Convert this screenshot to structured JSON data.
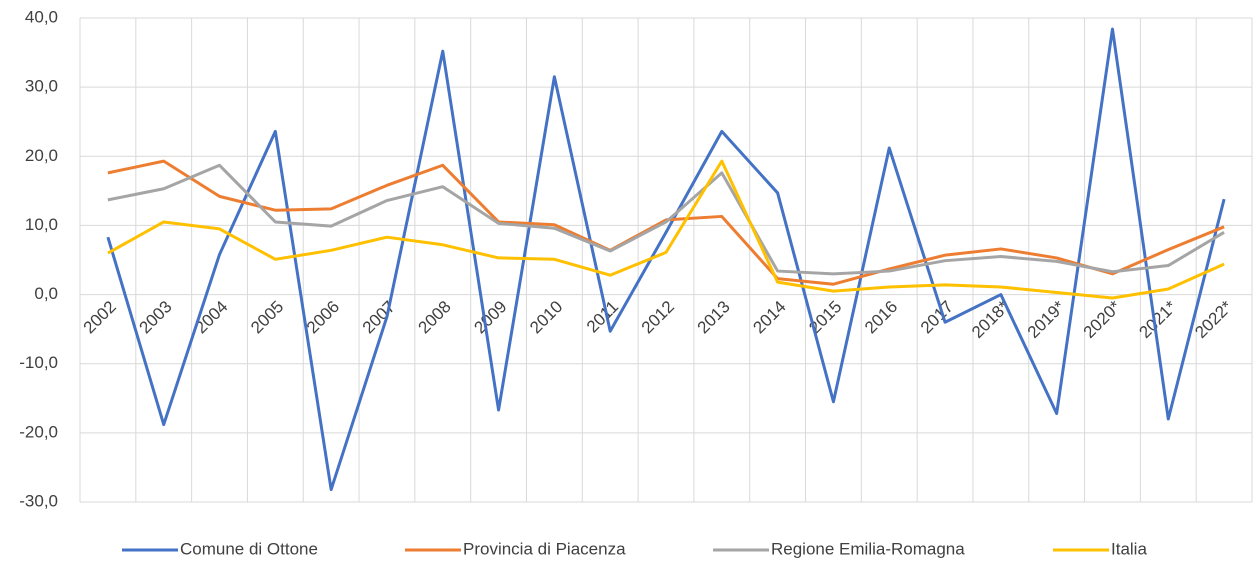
{
  "chart_data": {
    "type": "line",
    "categories": [
      "2002",
      "2003",
      "2004",
      "2005",
      "2006",
      "2007",
      "2008",
      "2009",
      "2010",
      "2011",
      "2012",
      "2013",
      "2014",
      "2015",
      "2016",
      "2017",
      "2018*",
      "2019*",
      "2020*",
      "2021*",
      "2022*"
    ],
    "series": [
      {
        "name": "Comune di Ottone",
        "color": "#4472c4",
        "values": [
          8.3,
          -18.8,
          5.8,
          23.6,
          -28.2,
          -3.2,
          35.2,
          -16.7,
          31.5,
          -5.3,
          9.0,
          23.6,
          14.7,
          -15.5,
          21.2,
          -4.0,
          0.0,
          -17.2,
          38.4,
          -18.0,
          13.8
        ]
      },
      {
        "name": "Provincia di Piacenza",
        "color": "#ed7d31",
        "values": [
          17.6,
          19.3,
          14.2,
          12.2,
          12.4,
          15.8,
          18.7,
          10.5,
          10.1,
          6.4,
          10.8,
          11.3,
          2.3,
          1.5,
          3.7,
          5.7,
          6.6,
          5.3,
          3.0,
          6.5,
          9.8
        ]
      },
      {
        "name": "Regione Emilia-Romagna",
        "color": "#a5a5a5",
        "values": [
          13.7,
          15.3,
          18.7,
          10.5,
          9.9,
          13.6,
          15.6,
          10.3,
          9.6,
          6.3,
          10.5,
          17.6,
          3.4,
          3.0,
          3.4,
          4.9,
          5.5,
          4.8,
          3.3,
          4.2,
          9.0
        ]
      },
      {
        "name": "Italia",
        "color": "#ffc000",
        "values": [
          6.0,
          10.5,
          9.5,
          5.1,
          6.4,
          8.3,
          7.2,
          5.3,
          5.1,
          2.8,
          6.1,
          19.3,
          1.8,
          0.5,
          1.1,
          1.4,
          1.1,
          0.3,
          -0.5,
          0.8,
          4.4
        ]
      }
    ],
    "ylim": [
      -30,
      40
    ],
    "yticks": [
      {
        "value": -30,
        "label": "-30,0"
      },
      {
        "value": -20,
        "label": "-20,0"
      },
      {
        "value": -10,
        "label": "-10,0"
      },
      {
        "value": 0,
        "label": "0,0"
      },
      {
        "value": 10,
        "label": "10,0"
      },
      {
        "value": 20,
        "label": "20,0"
      },
      {
        "value": 30,
        "label": "30,0"
      },
      {
        "value": 40,
        "label": "40,0"
      }
    ],
    "grid": true,
    "legend": "bottom"
  }
}
